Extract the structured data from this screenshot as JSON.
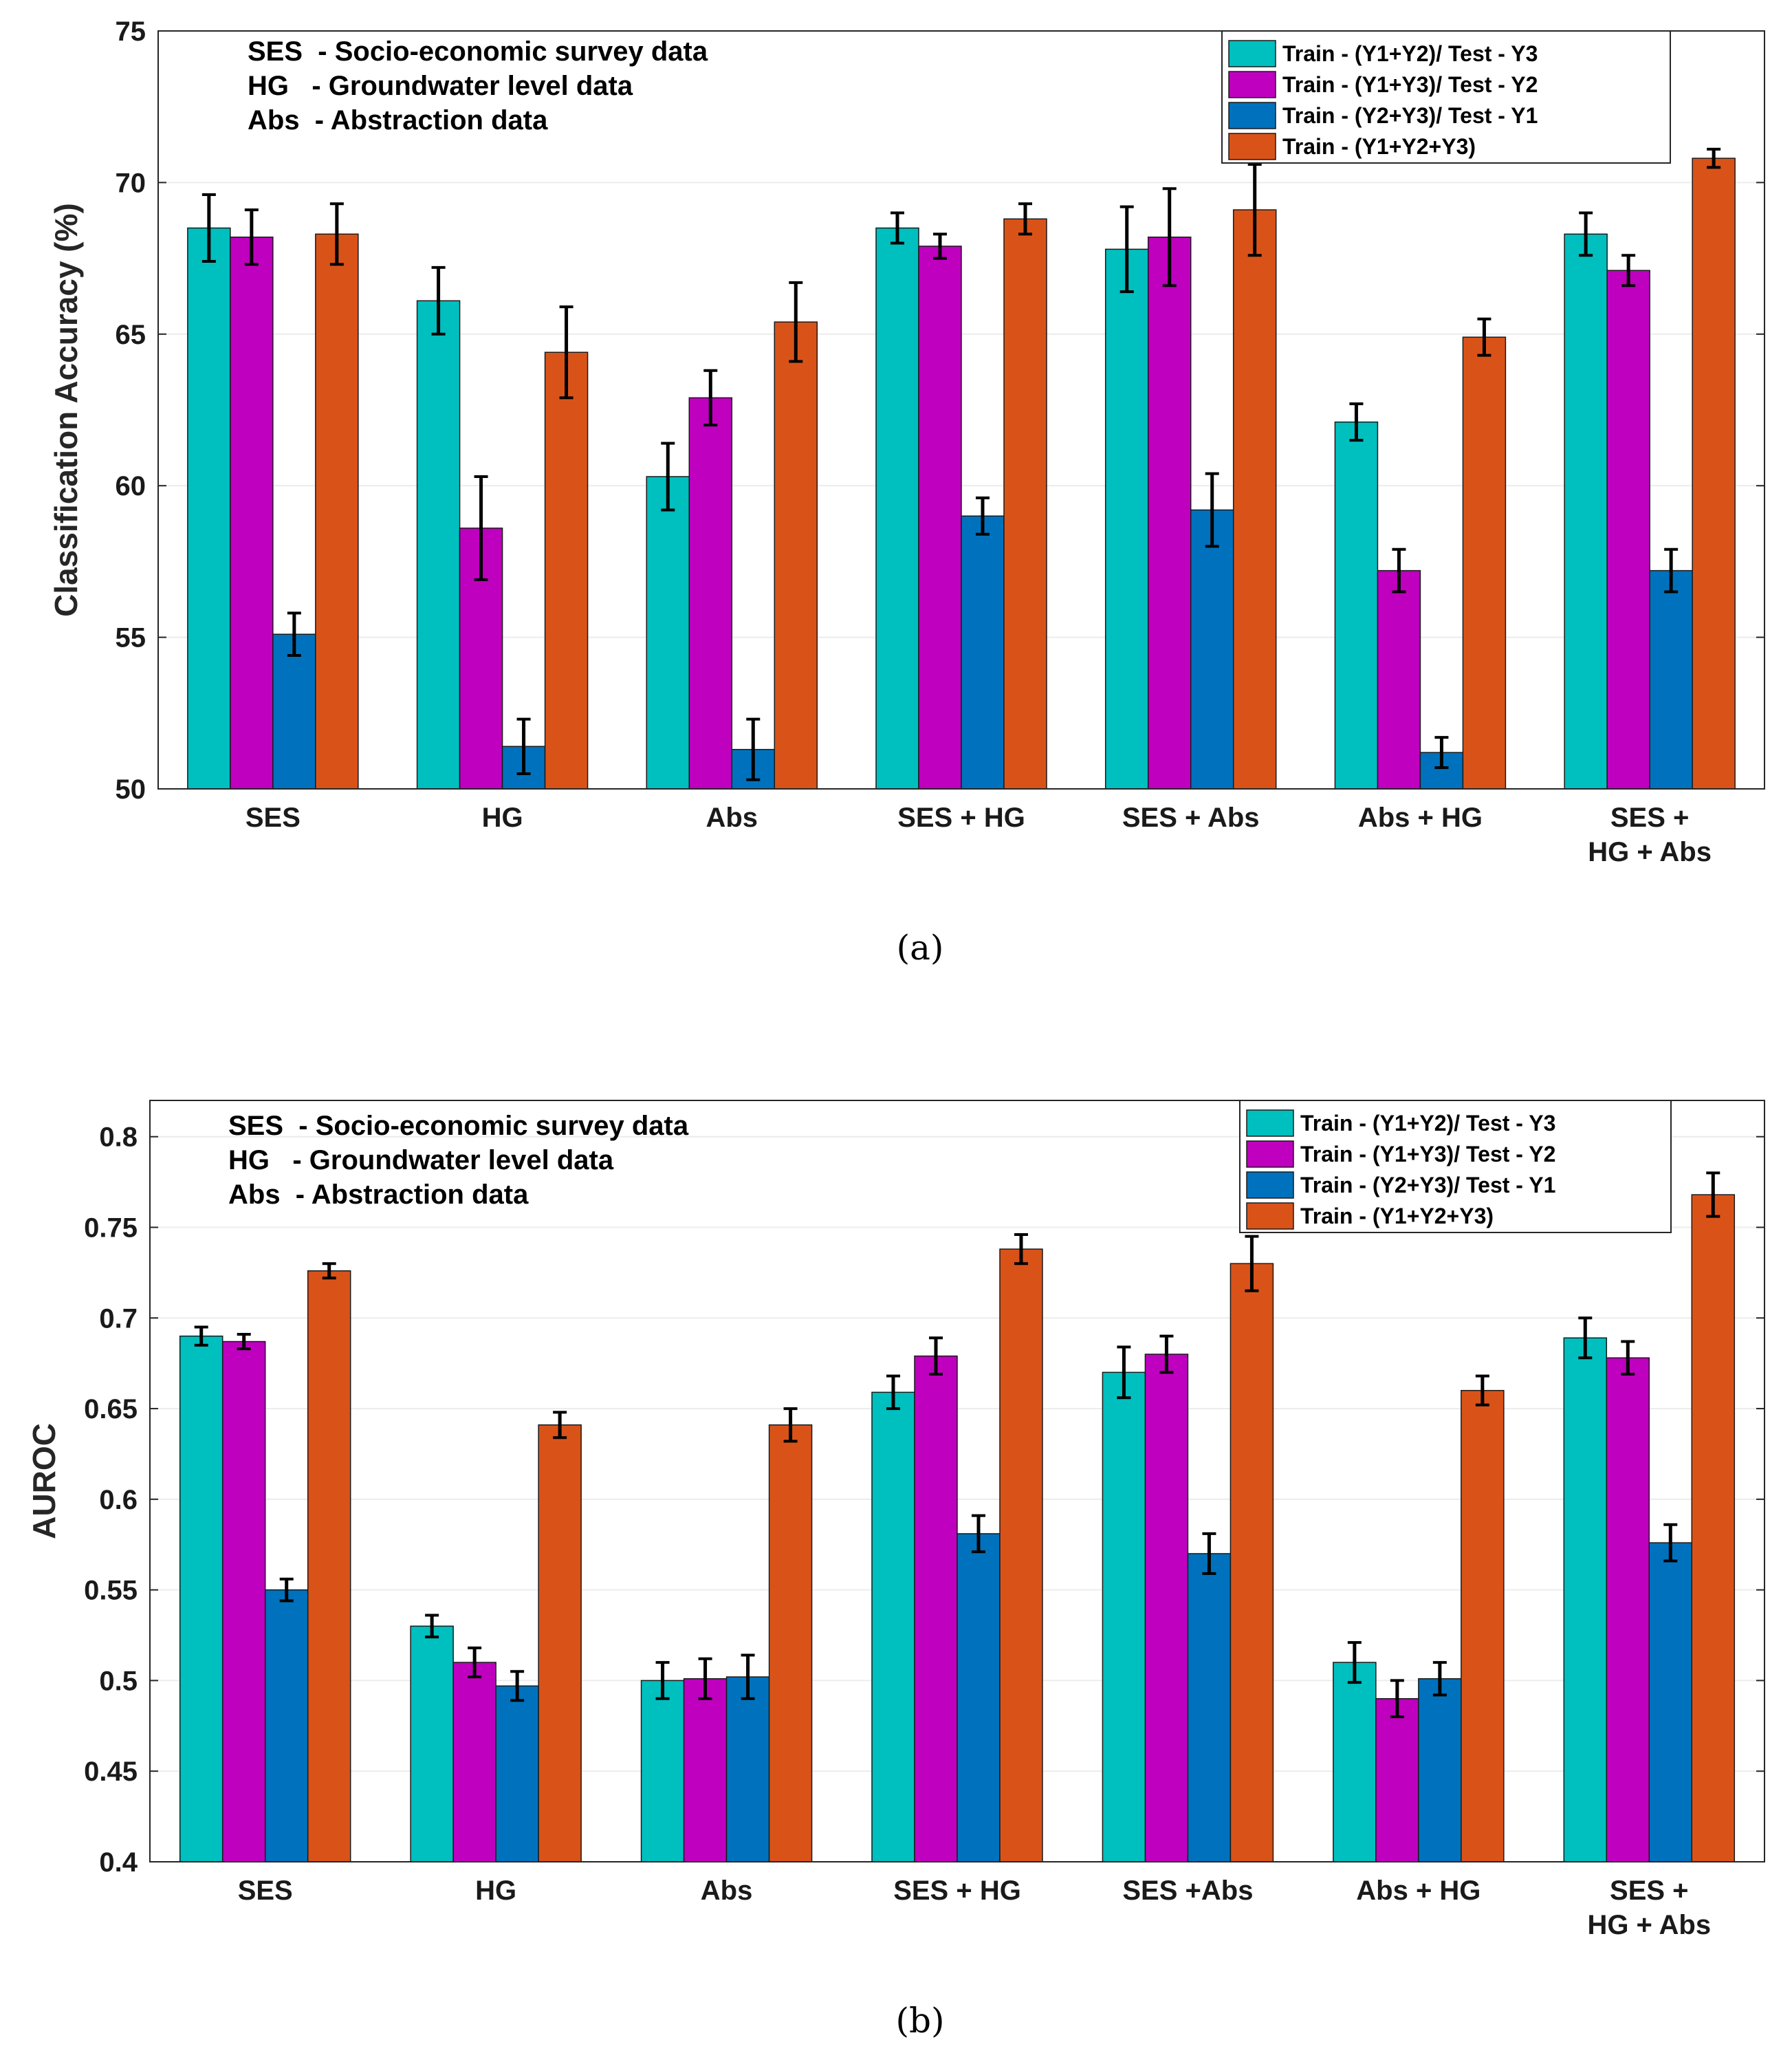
{
  "colors": {
    "series": [
      "#00bfbf",
      "#bf00bf",
      "#0072bd",
      "#d95319"
    ],
    "axis": "#262626",
    "grid": "#ececec",
    "errorbar": "#000000"
  },
  "chart_data": [
    {
      "type": "bar",
      "caption": "(a)",
      "ylabel": "Classification Accuracy (%)",
      "ylim": [
        50,
        75
      ],
      "yticks": [
        "50",
        "55",
        "60",
        "65",
        "70",
        "75"
      ],
      "grid": true,
      "legend_position": "top-right",
      "categories": [
        [
          "SES"
        ],
        [
          "HG"
        ],
        [
          "Abs"
        ],
        [
          "SES + HG"
        ],
        [
          "SES + Abs"
        ],
        [
          "Abs + HG"
        ],
        [
          "SES +",
          "HG + Abs"
        ]
      ],
      "annotations": [
        "SES  - Socio-economic survey data",
        "HG   - Groundwater level data",
        "Abs  - Abstraction data"
      ],
      "series": [
        {
          "name": "Train - (Y1+Y2)/ Test - Y3",
          "values": [
            68.5,
            66.1,
            60.3,
            68.5,
            67.8,
            62.1,
            68.3
          ],
          "errors": [
            1.1,
            1.1,
            1.1,
            0.5,
            1.4,
            0.6,
            0.7
          ]
        },
        {
          "name": "Train - (Y1+Y3)/ Test - Y2",
          "values": [
            68.2,
            58.6,
            62.9,
            67.9,
            68.2,
            57.2,
            67.1
          ],
          "errors": [
            0.9,
            1.7,
            0.9,
            0.4,
            1.6,
            0.7,
            0.5
          ]
        },
        {
          "name": "Train - (Y2+Y3)/ Test - Y1",
          "values": [
            55.1,
            51.4,
            51.3,
            59.0,
            59.2,
            51.2,
            57.2
          ],
          "errors": [
            0.7,
            0.9,
            1.0,
            0.6,
            1.2,
            0.5,
            0.7
          ]
        },
        {
          "name": "Train - (Y1+Y2+Y3)",
          "values": [
            68.3,
            64.4,
            65.4,
            68.8,
            69.1,
            64.9,
            70.8
          ],
          "errors": [
            1.0,
            1.5,
            1.3,
            0.5,
            1.5,
            0.6,
            0.3
          ]
        }
      ]
    },
    {
      "type": "bar",
      "caption": "(b)",
      "ylabel": "AUROC",
      "ylim": [
        0.4,
        0.82
      ],
      "yticks": [
        "0.4",
        "0.45",
        "0.5",
        "0.55",
        "0.6",
        "0.65",
        "0.7",
        "0.75",
        "0.8"
      ],
      "grid": true,
      "legend_position": "top-right",
      "categories": [
        [
          "SES"
        ],
        [
          "HG"
        ],
        [
          "Abs"
        ],
        [
          "SES + HG"
        ],
        [
          "SES +Abs"
        ],
        [
          "Abs + HG"
        ],
        [
          "SES +",
          "HG + Abs"
        ]
      ],
      "annotations": [
        "SES  - Socio-economic survey data",
        "HG   - Groundwater level data",
        "Abs  - Abstraction data"
      ],
      "series": [
        {
          "name": "Train - (Y1+Y2)/ Test - Y3",
          "values": [
            0.69,
            0.53,
            0.5,
            0.659,
            0.67,
            0.51,
            0.689
          ],
          "errors": [
            0.005,
            0.006,
            0.01,
            0.009,
            0.014,
            0.011,
            0.011
          ]
        },
        {
          "name": "Train - (Y1+Y3)/ Test - Y2",
          "values": [
            0.687,
            0.51,
            0.501,
            0.679,
            0.68,
            0.49,
            0.678
          ],
          "errors": [
            0.004,
            0.008,
            0.011,
            0.01,
            0.01,
            0.01,
            0.009
          ]
        },
        {
          "name": "Train - (Y2+Y3)/ Test - Y1",
          "values": [
            0.55,
            0.497,
            0.502,
            0.581,
            0.57,
            0.501,
            0.576
          ],
          "errors": [
            0.006,
            0.008,
            0.012,
            0.01,
            0.011,
            0.009,
            0.01
          ]
        },
        {
          "name": "Train - (Y1+Y2+Y3)",
          "values": [
            0.726,
            0.641,
            0.641,
            0.738,
            0.73,
            0.66,
            0.768
          ],
          "errors": [
            0.004,
            0.007,
            0.009,
            0.008,
            0.015,
            0.008,
            0.012
          ]
        }
      ]
    }
  ]
}
